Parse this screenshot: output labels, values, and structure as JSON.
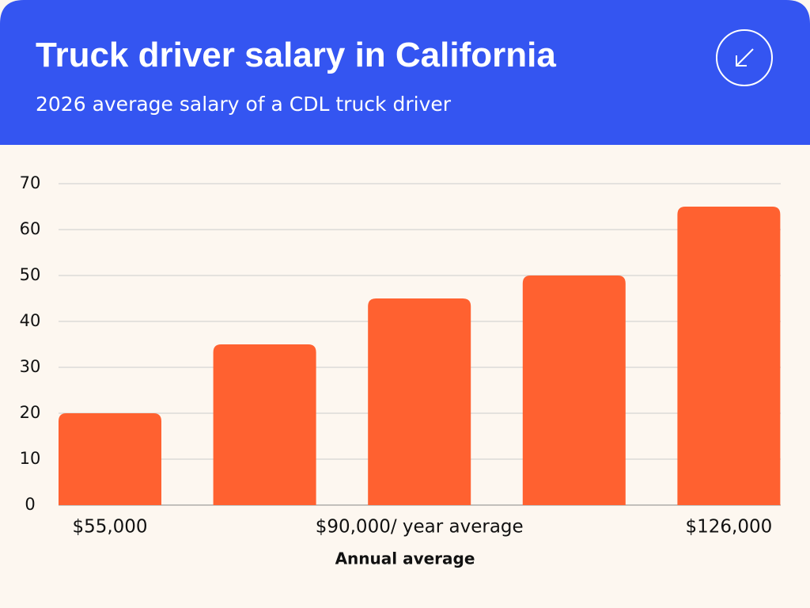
{
  "chart_data": {
    "type": "bar",
    "title": "Truck driver salary in California",
    "subtitle": "2026 average salary of a CDL truck driver",
    "x_label": "Annual average",
    "categories": [
      "$55,000",
      null,
      "$90,000/ year average",
      null,
      "$126,000"
    ],
    "values": [
      20,
      35,
      45,
      50,
      65
    ],
    "color": "#ff6130",
    "ylim": [
      0,
      70
    ],
    "yticks": [
      0,
      10,
      20,
      30,
      40,
      50,
      60,
      70
    ],
    "grid": true
  }
}
